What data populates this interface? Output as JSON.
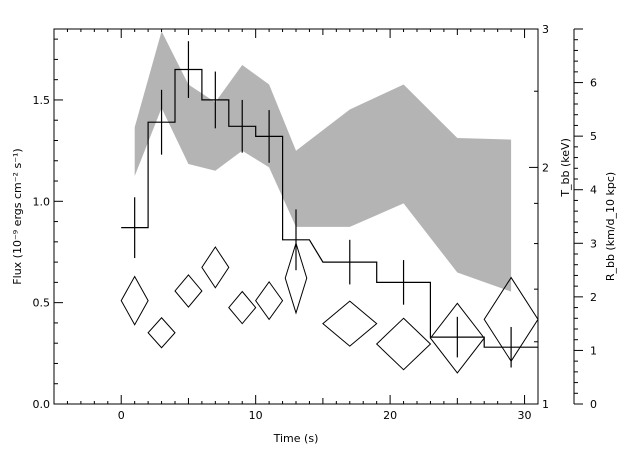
{
  "chart_data": {
    "type": "line",
    "xlabel": "Time (s)",
    "ylabel_left": "Flux (10⁻⁹ ergs cm⁻² s⁻¹)",
    "ylabel_right_inner": "T_bb (keV)",
    "ylabel_right_outer": "R_bb (km/d_10 kpc)",
    "xlim": [
      -5,
      31
    ],
    "ylim_left": [
      0.0,
      1.85
    ],
    "ylim_right_inner": [
      1,
      3
    ],
    "ylim_right_outer": [
      0,
      7
    ],
    "x_ticks": [
      "0",
      "10",
      "20",
      "30"
    ],
    "x_tick_values": [
      0,
      10,
      20,
      30
    ],
    "y_left_ticks": [
      "0.0",
      "0.5",
      "1.0",
      "1.5"
    ],
    "y_left_tick_values": [
      0.0,
      0.5,
      1.0,
      1.5
    ],
    "y_right_inner_ticks": [
      "1",
      "2",
      "3"
    ],
    "y_right_inner_tick_values": [
      1,
      2,
      3
    ],
    "y_right_outer_ticks": [
      "0",
      "1",
      "2",
      "3",
      "4",
      "5",
      "6"
    ],
    "y_right_outer_tick_values": [
      0,
      1,
      2,
      3,
      4,
      5,
      6
    ],
    "flux": {
      "x": [
        1,
        3,
        5,
        7,
        9,
        11,
        13,
        17,
        21,
        25,
        29
      ],
      "xerr": [
        1,
        1,
        1,
        1,
        1,
        1,
        1,
        2,
        2,
        2,
        2
      ],
      "y": [
        0.87,
        1.39,
        1.65,
        1.5,
        1.37,
        1.32,
        0.81,
        0.7,
        0.6,
        0.33,
        0.28
      ],
      "yerr": [
        0.15,
        0.16,
        0.14,
        0.14,
        0.13,
        0.13,
        0.15,
        0.11,
        0.11,
        0.1,
        0.1
      ]
    },
    "temperature_band": {
      "x": [
        1,
        3,
        5,
        7,
        9,
        11,
        13,
        17,
        21,
        25,
        29
      ],
      "upper": [
        2.25,
        2.98,
        2.55,
        2.42,
        2.7,
        2.55,
        2.1,
        2.37,
        2.55,
        2.18,
        2.17
      ],
      "lower": [
        1.95,
        2.38,
        2.02,
        1.98,
        2.1,
        2.0,
        1.68,
        1.68,
        1.8,
        1.47,
        1.39
      ]
    },
    "radius": {
      "x": [
        1,
        3,
        5,
        7,
        9,
        11,
        13,
        17,
        21,
        25,
        29
      ],
      "xerr": [
        1,
        1,
        1,
        1,
        1,
        1,
        0.8,
        2,
        2,
        2,
        2
      ],
      "y": [
        1.93,
        1.33,
        2.11,
        2.55,
        1.8,
        1.93,
        2.35,
        1.5,
        1.12,
        1.23,
        1.58
      ],
      "yerr": [
        0.45,
        0.28,
        0.3,
        0.38,
        0.3,
        0.35,
        0.65,
        0.42,
        0.48,
        0.65,
        0.78
      ]
    }
  }
}
